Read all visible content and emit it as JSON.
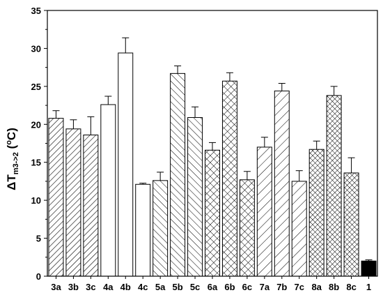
{
  "chart_data": {
    "type": "bar",
    "ylabel": {
      "main": "ΔT",
      "subscript": "m3->2",
      "unit_open": " (",
      "unit_sup": "o",
      "unit_close": "C)"
    },
    "ylim": [
      0,
      35
    ],
    "yticks": [
      0,
      5,
      10,
      15,
      20,
      25,
      30,
      35
    ],
    "categories": [
      "3a",
      "3b",
      "3c",
      "4a",
      "4b",
      "4c",
      "5a",
      "5b",
      "5c",
      "6a",
      "6b",
      "6c",
      "7a",
      "7b",
      "7c",
      "8a",
      "8b",
      "8c",
      "1"
    ],
    "values": [
      20.8,
      19.4,
      18.6,
      22.6,
      29.4,
      12.1,
      12.6,
      26.7,
      20.9,
      16.6,
      25.7,
      12.7,
      17.0,
      24.4,
      12.5,
      16.7,
      23.8,
      13.6,
      2.0
    ],
    "errors": [
      1.0,
      1.2,
      2.4,
      1.1,
      2.0,
      0.15,
      1.1,
      1.0,
      1.4,
      1.0,
      1.1,
      1.1,
      1.3,
      1.0,
      1.4,
      1.1,
      1.2,
      2.0,
      0.15
    ],
    "patterns": [
      "diag-right",
      "diag-right",
      "diag-right",
      "none",
      "none",
      "none",
      "diag-left",
      "diag-left",
      "diag-left",
      "cross",
      "cross",
      "cross",
      "diag-right-sparse",
      "diag-right-sparse",
      "diag-right-sparse",
      "cross-dense",
      "cross-dense",
      "cross-dense",
      "solid"
    ],
    "colors": {
      "stroke": "#000000",
      "fill": "#ffffff",
      "solid": "#000000"
    }
  }
}
